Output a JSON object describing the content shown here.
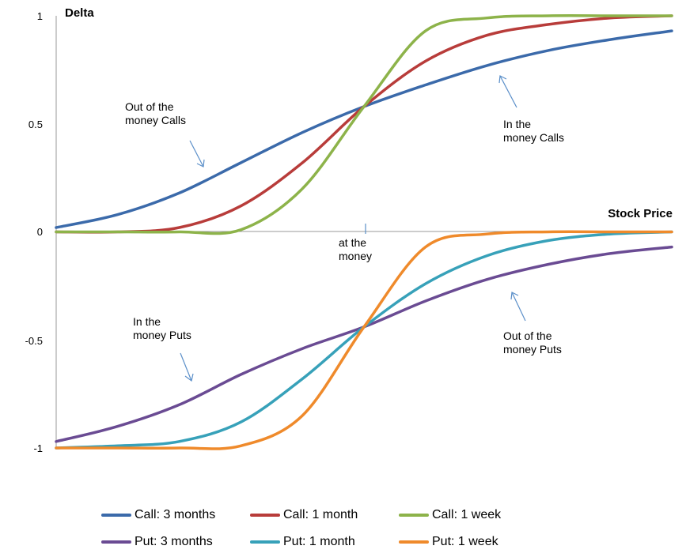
{
  "chart_data": {
    "type": "line",
    "title": "",
    "xlabel": "Stock Price",
    "ylabel": "Delta",
    "ylim": [
      -1,
      1
    ],
    "yticks": [
      "1",
      "0.5",
      "0",
      "-0.5",
      "-1"
    ],
    "grid": false,
    "legend_position": "bottom",
    "series": [
      {
        "name": "Call: 3 months",
        "color": "#3b6aaa",
        "x": [
          0,
          0.1,
          0.2,
          0.3,
          0.4,
          0.5,
          0.6,
          0.7,
          0.8,
          0.9,
          1.0
        ],
        "values": [
          0.02,
          0.08,
          0.18,
          0.32,
          0.46,
          0.58,
          0.68,
          0.77,
          0.84,
          0.89,
          0.93
        ]
      },
      {
        "name": "Call: 1 month",
        "color": "#b83c3a",
        "x": [
          0,
          0.1,
          0.2,
          0.3,
          0.4,
          0.5,
          0.6,
          0.7,
          0.8,
          0.9,
          1.0
        ],
        "values": [
          0.0,
          0.0,
          0.02,
          0.12,
          0.32,
          0.58,
          0.79,
          0.91,
          0.96,
          0.99,
          1.0
        ]
      },
      {
        "name": "Call: 1 week",
        "color": "#8db34a",
        "x": [
          0,
          0.1,
          0.2,
          0.3,
          0.4,
          0.5,
          0.6,
          0.7,
          0.8,
          0.9,
          1.0
        ],
        "values": [
          0.0,
          0.0,
          0.0,
          0.01,
          0.2,
          0.58,
          0.93,
          0.99,
          1.0,
          1.0,
          1.0
        ]
      },
      {
        "name": "Put: 3 months",
        "color": "#6a4b93",
        "x": [
          0,
          0.1,
          0.2,
          0.3,
          0.4,
          0.5,
          0.6,
          0.7,
          0.8,
          0.9,
          1.0
        ],
        "values": [
          -0.97,
          -0.9,
          -0.8,
          -0.66,
          -0.54,
          -0.44,
          -0.32,
          -0.22,
          -0.15,
          -0.1,
          -0.07
        ]
      },
      {
        "name": "Put: 1 month",
        "color": "#37a1b9",
        "x": [
          0,
          0.1,
          0.2,
          0.3,
          0.4,
          0.5,
          0.6,
          0.7,
          0.8,
          0.9,
          1.0
        ],
        "values": [
          -1.0,
          -0.99,
          -0.97,
          -0.88,
          -0.68,
          -0.44,
          -0.24,
          -0.11,
          -0.04,
          -0.01,
          0.0
        ]
      },
      {
        "name": "Put: 1 week",
        "color": "#ef8a2b",
        "x": [
          0,
          0.1,
          0.2,
          0.3,
          0.4,
          0.5,
          0.6,
          0.7,
          0.8,
          0.9,
          1.0
        ],
        "values": [
          -1.0,
          -1.0,
          -1.0,
          -0.99,
          -0.85,
          -0.44,
          -0.07,
          -0.01,
          0.0,
          0.0,
          0.0
        ]
      }
    ],
    "annotations": {
      "otm_calls": [
        "Out of the",
        "money Calls"
      ],
      "itm_calls": [
        "In the",
        "money Calls"
      ],
      "atm": [
        "at the",
        "money"
      ],
      "itm_puts": [
        "In the",
        "money Puts"
      ],
      "otm_puts": [
        "Out of the",
        "money Puts"
      ]
    }
  }
}
